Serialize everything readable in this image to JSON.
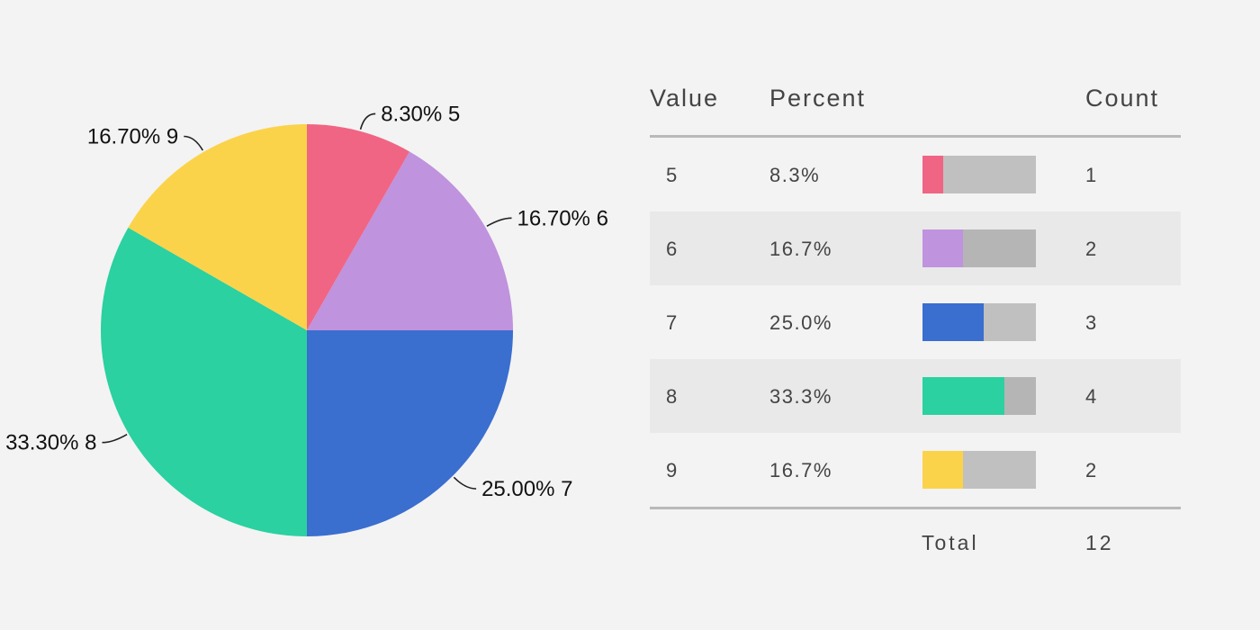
{
  "chart_data": [
    {
      "type": "pie",
      "slices": [
        {
          "value": "5",
          "percent": 8.3,
          "label": "8.30% 5",
          "color": "#f06584"
        },
        {
          "value": "6",
          "percent": 16.7,
          "label": "16.70% 6",
          "color": "#bf93dd"
        },
        {
          "value": "7",
          "percent": 25.0,
          "label": "25.00% 7",
          "color": "#3a6ecf"
        },
        {
          "value": "8",
          "percent": 33.3,
          "label": "33.30% 8",
          "color": "#2bd1a0"
        },
        {
          "value": "9",
          "percent": 16.7,
          "label": "16.70% 9",
          "color": "#fbd34a"
        }
      ]
    },
    {
      "type": "table",
      "headers": {
        "value": "Value",
        "percent": "Percent",
        "count": "Count"
      },
      "rows": [
        {
          "value": "5",
          "percent": "8.3%",
          "fraction": 0.083,
          "count": "1",
          "color": "#f06584"
        },
        {
          "value": "6",
          "percent": "16.7%",
          "fraction": 0.167,
          "count": "2",
          "color": "#bf93dd"
        },
        {
          "value": "7",
          "percent": "25.0%",
          "fraction": 0.25,
          "count": "3",
          "color": "#3a6ecf"
        },
        {
          "value": "8",
          "percent": "33.3%",
          "fraction": 0.333,
          "count": "4",
          "color": "#2bd1a0"
        },
        {
          "value": "9",
          "percent": "16.7%",
          "fraction": 0.167,
          "count": "2",
          "color": "#fbd34a"
        }
      ],
      "total_label": "Total",
      "total_count": "12"
    }
  ]
}
